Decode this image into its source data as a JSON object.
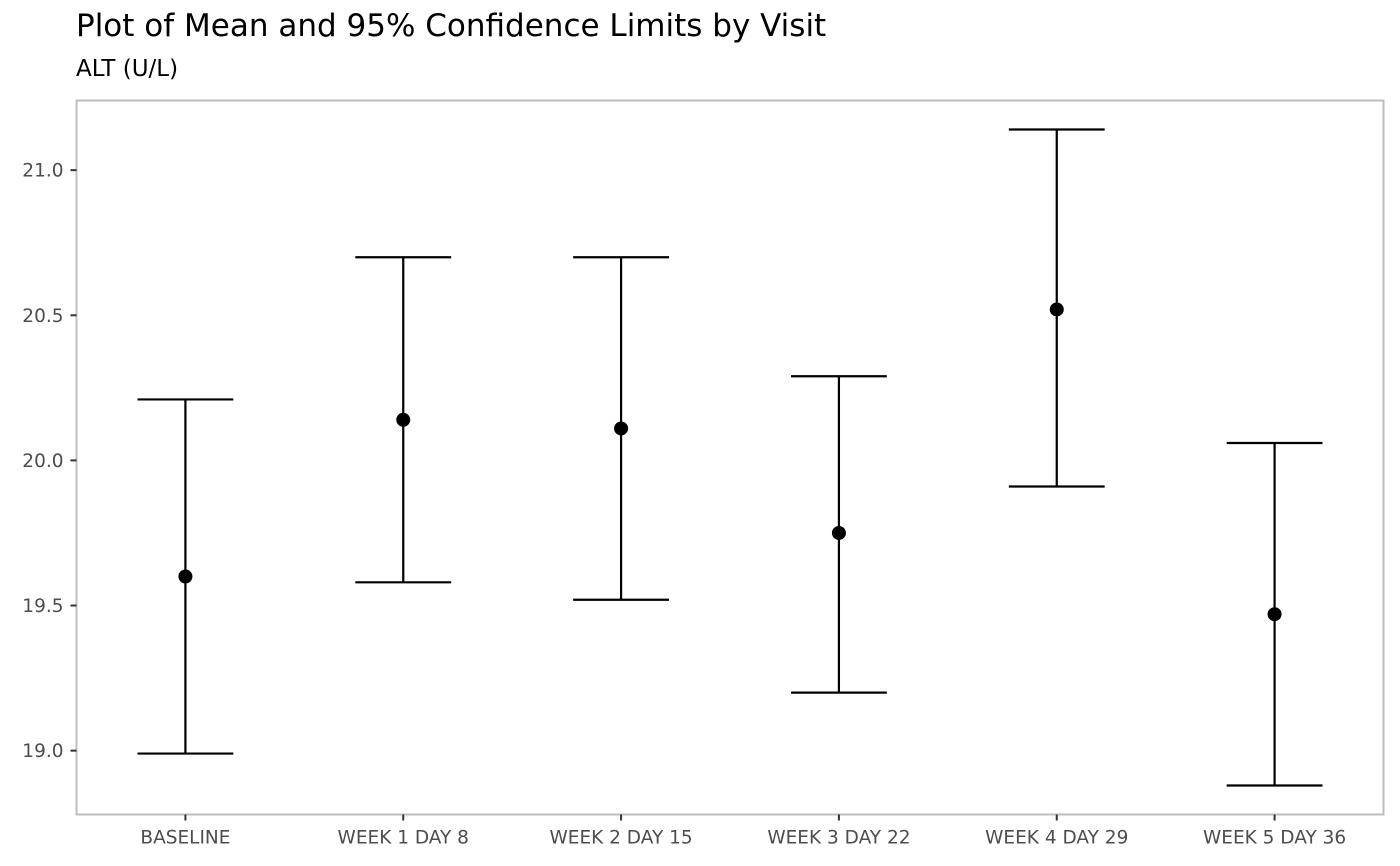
{
  "chart_data": {
    "type": "errorbar",
    "title": "Plot of Mean and 95% Confidence Limits by Visit",
    "subtitle": "ALT (U/L)",
    "xlabel": "",
    "ylabel": "",
    "categories": [
      "BASELINE",
      "WEEK 1 DAY 8",
      "WEEK 2 DAY 15",
      "WEEK 3 DAY 22",
      "WEEK 4 DAY 29",
      "WEEK 5 DAY 36"
    ],
    "mean": [
      19.6,
      20.14,
      20.11,
      19.75,
      20.52,
      19.47
    ],
    "lower": [
      18.99,
      19.58,
      19.52,
      19.2,
      19.91,
      18.88
    ],
    "upper": [
      20.21,
      20.7,
      20.7,
      20.29,
      21.14,
      20.06
    ],
    "ylim": [
      18.78,
      21.24
    ],
    "yticks": [
      19.0,
      19.5,
      20.0,
      20.5,
      21.0
    ],
    "ytick_labels": [
      "19.0",
      "19.5",
      "20.0",
      "20.5",
      "21.0"
    ],
    "grid": false,
    "legend": "none",
    "colors": {
      "mark": "#000000",
      "panel_border": "#bebebe",
      "tick_label": "#4d4d4d",
      "tick": "#333333"
    }
  }
}
